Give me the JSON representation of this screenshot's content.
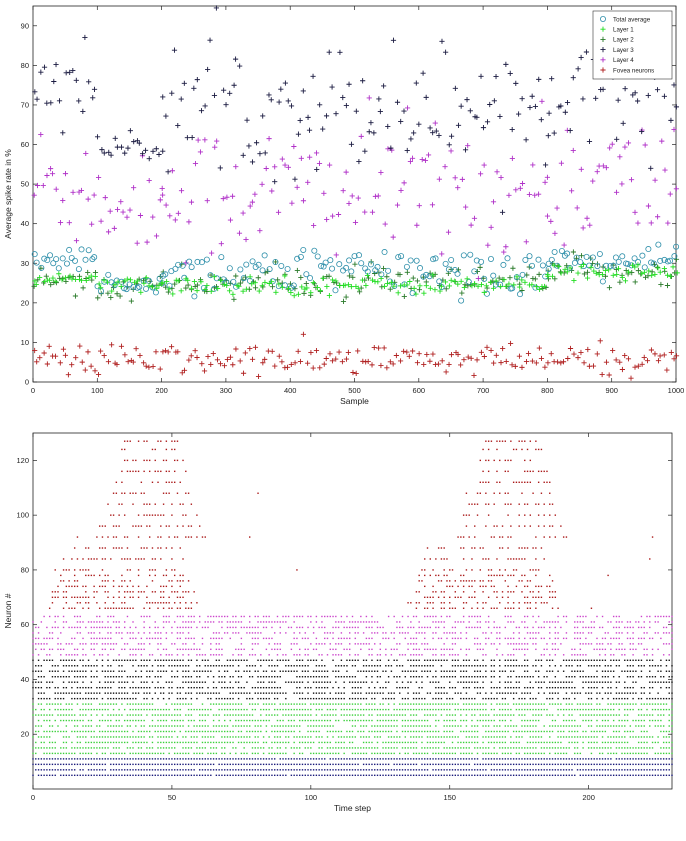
{
  "chart_data": [
    {
      "type": "scatter",
      "title": "",
      "xlabel": "Sample",
      "ylabel": "Average spike rate in %",
      "xlim": [
        0,
        1000
      ],
      "ylim": [
        0,
        95
      ],
      "xticks": [
        0,
        100,
        200,
        300,
        400,
        500,
        600,
        700,
        800,
        900,
        1000
      ],
      "yticks": [
        0,
        10,
        20,
        30,
        40,
        50,
        60,
        70,
        80,
        90
      ],
      "grid": false,
      "legend_position": "top-right",
      "sample_step": 5,
      "series": [
        {
          "name": "Total average",
          "marker": "o",
          "color": "#2e8faa",
          "segments": [
            [
              0,
              95,
              30.5,
              1.8
            ],
            [
              100,
              200,
              25.0,
              1.5
            ],
            [
              200,
              800,
              28.0,
              3.0
            ],
            [
              800,
              1000,
              30.5,
              1.8
            ]
          ]
        },
        {
          "name": "Layer 1",
          "marker": "+",
          "color": "#22dd22",
          "segments": [
            [
              0,
              95,
              26.0,
              0.7
            ],
            [
              100,
              200,
              24.5,
              1.0
            ],
            [
              200,
              800,
              24.5,
              1.2
            ],
            [
              800,
              1000,
              28.0,
              1.0
            ]
          ]
        },
        {
          "name": "Layer 2",
          "marker": "+",
          "color": "#2a7a2a",
          "segments": [
            [
              0,
              95,
              26.0,
              1.5
            ],
            [
              100,
              200,
              24.0,
              2.0
            ],
            [
              200,
              800,
              25.0,
              2.0
            ],
            [
              800,
              1000,
              28.0,
              2.0
            ]
          ]
        },
        {
          "name": "Layer 3",
          "marker": "+",
          "color": "#1a1a40",
          "segments": [
            [
              0,
              95,
              76.0,
              6.0
            ],
            [
              100,
              200,
              59.0,
              1.5
            ],
            [
              200,
              800,
              70.0,
              8.0
            ],
            [
              800,
              1000,
              74.0,
              6.0
            ]
          ]
        },
        {
          "name": "Layer 4",
          "marker": "+",
          "color": "#b030c8",
          "segments": [
            [
              0,
              95,
              50.0,
              9.0
            ],
            [
              100,
              200,
              45.0,
              6.0
            ],
            [
              200,
              800,
              48.0,
              9.0
            ],
            [
              800,
              1000,
              50.0,
              9.0
            ]
          ]
        },
        {
          "name": "Fovea neurons",
          "marker": "+",
          "color": "#b02020",
          "segments": [
            [
              0,
              1000,
              5.5,
              2.0
            ]
          ]
        }
      ]
    },
    {
      "type": "scatter",
      "title": "",
      "xlabel": "Time step",
      "ylabel": "Neuron #",
      "xlim": [
        0,
        230
      ],
      "ylim": [
        0,
        130
      ],
      "xticks": [
        0,
        50,
        100,
        150,
        200
      ],
      "yticks": [
        20,
        40,
        60,
        80,
        100,
        120
      ],
      "grid": false,
      "legend_position": "none",
      "groups": [
        {
          "color": "#1a1a7a",
          "neurons": [
            5,
            7,
            9,
            11
          ],
          "density": 0.97
        },
        {
          "color": "#3ad03a",
          "neurons": [
            13,
            15,
            17,
            19,
            21,
            23,
            25,
            27,
            29,
            31
          ],
          "density": 0.8
        },
        {
          "color": "#111111",
          "neurons": [
            33,
            35,
            37,
            39,
            41,
            43,
            45,
            47
          ],
          "density": 0.7
        },
        {
          "color": "#cc44cc",
          "neurons": [
            49,
            51,
            53,
            55,
            57,
            59,
            61,
            63
          ],
          "density": 0.55
        },
        {
          "color": "#aa1818",
          "neurons": [
            66,
            68,
            70,
            72,
            74,
            76,
            78,
            80,
            84,
            88,
            92,
            96,
            100,
            104,
            108,
            112,
            116,
            120,
            124,
            127
          ],
          "density": 0.12,
          "bursts": [
            [
              10,
              65
            ],
            [
              140,
              195
            ]
          ]
        }
      ]
    }
  ]
}
